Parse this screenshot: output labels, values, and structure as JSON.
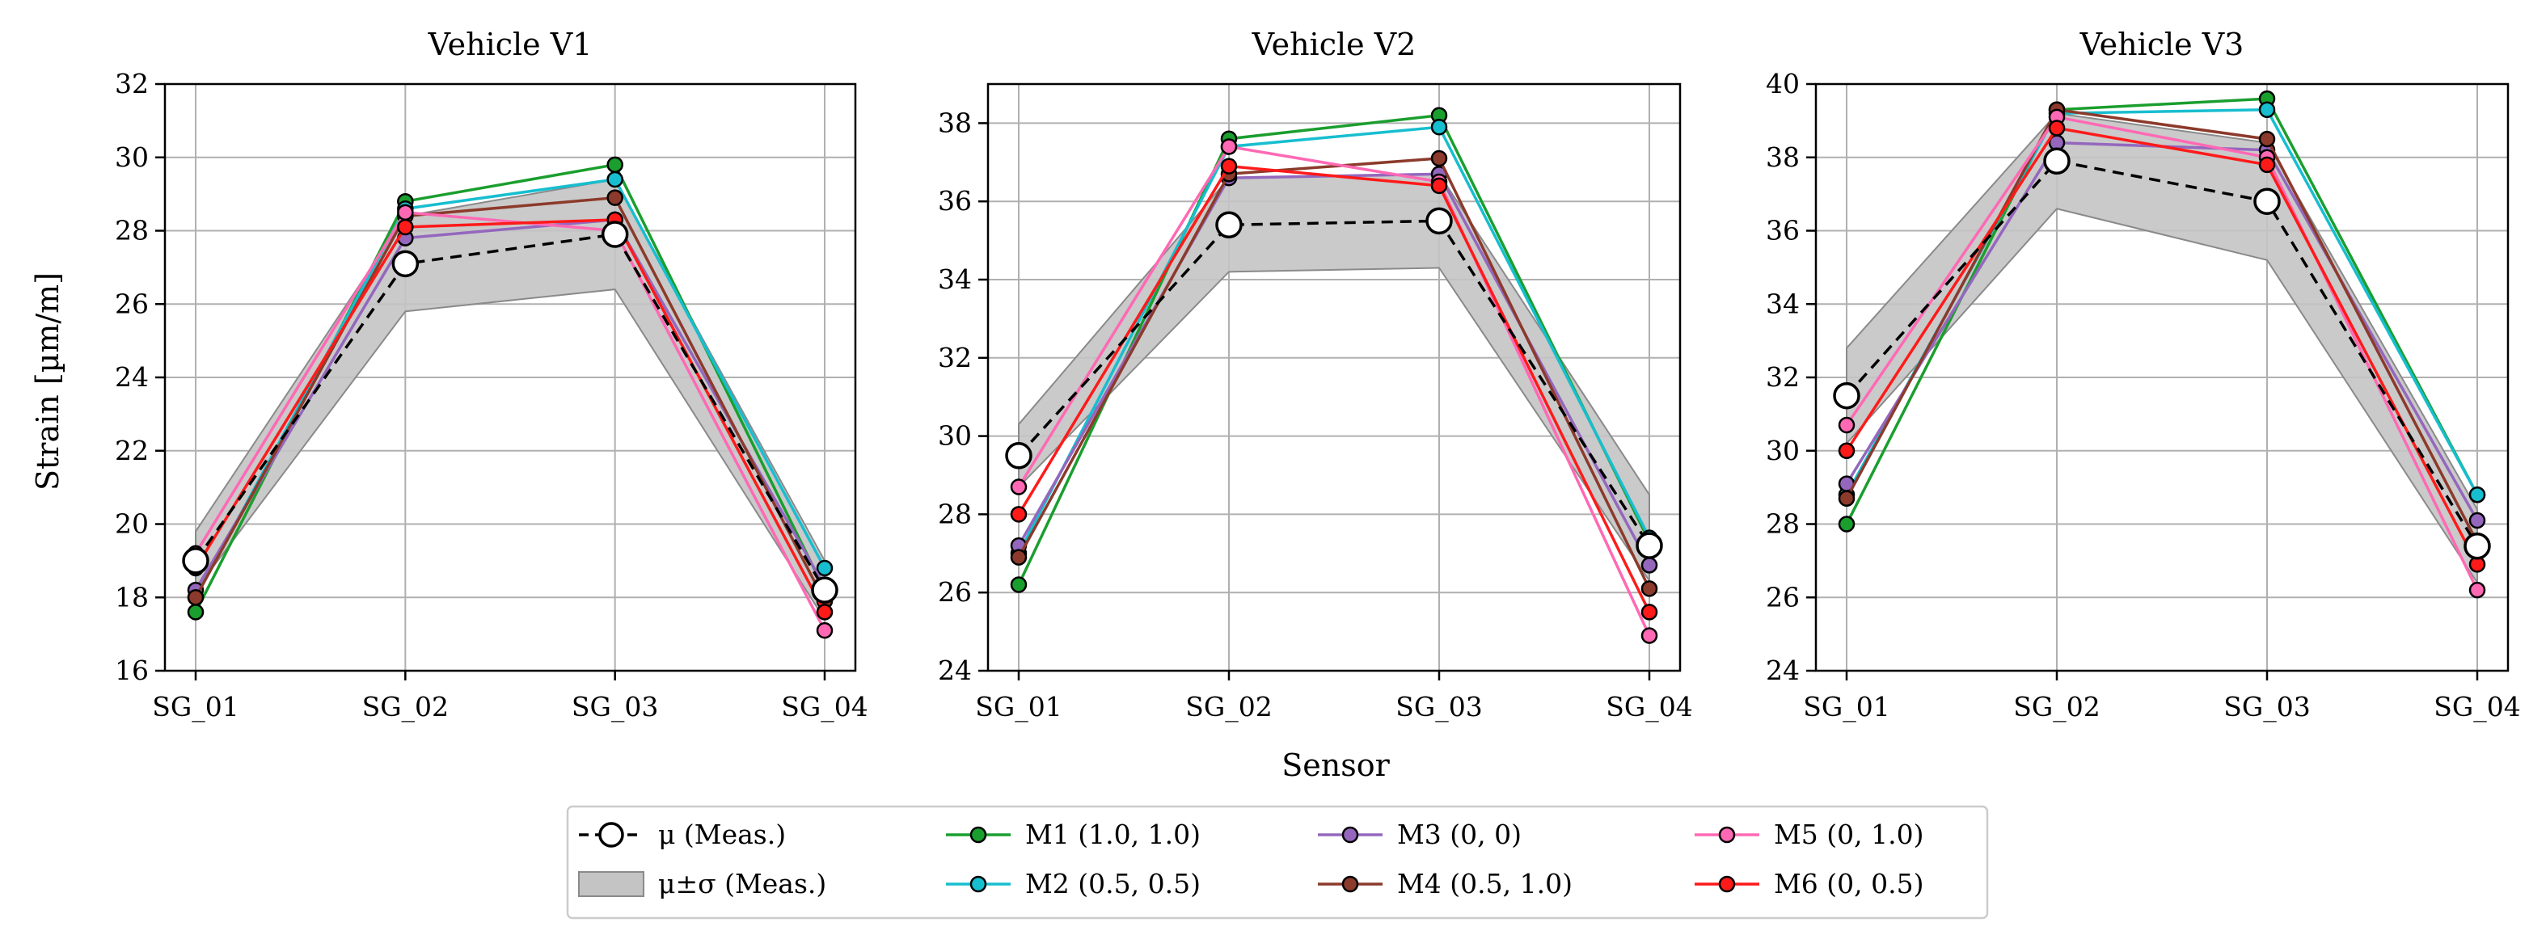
{
  "chart_data": {
    "type": "line",
    "xlabel": "Sensor",
    "ylabel": "Strain [µm/m]",
    "categories": [
      "SG_01",
      "SG_02",
      "SG_03",
      "SG_04"
    ],
    "legend_position": "bottom-center",
    "legend": [
      {
        "key": "mu",
        "label": "μ (Meas.)"
      },
      {
        "key": "band",
        "label": "μ±σ (Meas.)"
      },
      {
        "key": "M1",
        "label": "M1 (1.0, 1.0)"
      },
      {
        "key": "M2",
        "label": "M2 (0.5, 0.5)"
      },
      {
        "key": "M3",
        "label": "M3 (0, 0)"
      },
      {
        "key": "M4",
        "label": "M4 (0.5, 1.0)"
      },
      {
        "key": "M5",
        "label": "M5 (0, 1.0)"
      },
      {
        "key": "M6",
        "label": "M6 (0, 0.5)"
      }
    ],
    "colors": {
      "mu": "#000000",
      "band": "#a0a0a0",
      "M1": "#1a9e2e",
      "M2": "#17becf",
      "M3": "#9467bd",
      "M4": "#8c3a2b",
      "M5": "#ff69b4",
      "M6": "#ff1a1a"
    },
    "panels": [
      {
        "title": "Vehicle V1",
        "ylim": [
          16,
          32
        ],
        "yticks": [
          16,
          18,
          20,
          22,
          24,
          26,
          28,
          30,
          32
        ],
        "mu": [
          19.0,
          27.1,
          27.9,
          18.2
        ],
        "sigma_low": [
          18.2,
          25.8,
          26.4,
          17.4
        ],
        "sigma_high": [
          19.8,
          28.4,
          29.4,
          19.0
        ],
        "series": [
          {
            "name": "M1",
            "values": [
              17.6,
              28.8,
              29.8,
              18.2
            ]
          },
          {
            "name": "M2",
            "values": [
              18.0,
              28.6,
              29.4,
              18.8
            ]
          },
          {
            "name": "M3",
            "values": [
              18.2,
              27.8,
              28.3,
              18.3
            ]
          },
          {
            "name": "M4",
            "values": [
              18.0,
              28.4,
              28.9,
              17.9
            ]
          },
          {
            "name": "M5",
            "values": [
              19.2,
              28.5,
              28.0,
              17.1
            ]
          },
          {
            "name": "M6",
            "values": [
              18.8,
              28.1,
              28.3,
              17.6
            ]
          }
        ]
      },
      {
        "title": "Vehicle V2",
        "ylim": [
          24,
          39
        ],
        "yticks": [
          24,
          26,
          28,
          30,
          32,
          34,
          36,
          38
        ],
        "mu": [
          29.5,
          35.4,
          35.5,
          27.2
        ],
        "sigma_low": [
          28.7,
          34.2,
          34.3,
          26.3
        ],
        "sigma_high": [
          30.3,
          36.6,
          36.7,
          28.5
        ],
        "series": [
          {
            "name": "M1",
            "values": [
              26.2,
              37.6,
              38.2,
              27.3
            ]
          },
          {
            "name": "M2",
            "values": [
              27.0,
              37.4,
              37.9,
              27.4
            ]
          },
          {
            "name": "M3",
            "values": [
              27.2,
              36.6,
              36.7,
              26.7
            ]
          },
          {
            "name": "M4",
            "values": [
              26.9,
              36.7,
              37.1,
              26.1
            ]
          },
          {
            "name": "M5",
            "values": [
              28.7,
              37.4,
              36.5,
              24.9
            ]
          },
          {
            "name": "M6",
            "values": [
              28.0,
              36.9,
              36.4,
              25.5
            ]
          }
        ]
      },
      {
        "title": "Vehicle V3",
        "ylim": [
          24,
          40
        ],
        "yticks": [
          24,
          26,
          28,
          30,
          32,
          34,
          36,
          38,
          40
        ],
        "mu": [
          31.5,
          37.9,
          36.8,
          27.4
        ],
        "sigma_low": [
          30.2,
          36.6,
          35.2,
          26.4
        ],
        "sigma_high": [
          32.8,
          39.2,
          38.4,
          28.4
        ],
        "series": [
          {
            "name": "M1",
            "values": [
              28.0,
              39.3,
              39.6,
              28.8
            ]
          },
          {
            "name": "M2",
            "values": [
              28.8,
              39.2,
              39.3,
              28.8
            ]
          },
          {
            "name": "M3",
            "values": [
              29.1,
              38.4,
              38.2,
              28.1
            ]
          },
          {
            "name": "M4",
            "values": [
              28.7,
              39.3,
              38.5,
              27.5
            ]
          },
          {
            "name": "M5",
            "values": [
              30.7,
              39.1,
              38.0,
              26.2
            ]
          },
          {
            "name": "M6",
            "values": [
              30.0,
              38.8,
              37.8,
              26.9
            ]
          }
        ]
      }
    ]
  }
}
